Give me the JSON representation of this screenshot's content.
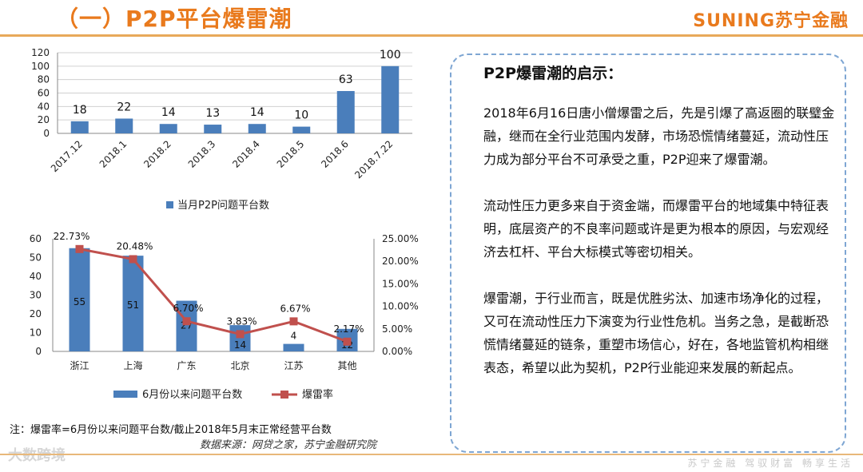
{
  "header": {
    "title": "（一）P2P平台爆雷潮",
    "brand": "SUNING苏宁金融"
  },
  "chart_data": [
    {
      "type": "bar",
      "categories": [
        "2017.12",
        "2018.1",
        "2018.2",
        "2018.3",
        "2018.4",
        "2018.5",
        "2018.6",
        "2018.7.22"
      ],
      "series": [
        {
          "name": "当月P2P问题平台数",
          "values": [
            18,
            22,
            14,
            13,
            14,
            10,
            63,
            100
          ],
          "color": "#4a7ebb"
        }
      ],
      "yticks": [
        0,
        20,
        40,
        60,
        80,
        100,
        120
      ],
      "ylim": [
        0,
        120
      ],
      "grid": true,
      "legend": "bottom"
    },
    {
      "type": "bar+line",
      "categories": [
        "浙江",
        "上海",
        "广东",
        "北京",
        "江苏",
        "其他"
      ],
      "series": [
        {
          "name": "6月份以来问题平台数",
          "type": "bar",
          "axis": "left",
          "values": [
            55,
            51,
            27,
            14,
            4,
            12
          ],
          "labels": [
            "55",
            "51",
            "27",
            "14",
            "4",
            "12"
          ],
          "color": "#4a7ebb"
        },
        {
          "name": "爆雷率",
          "type": "line",
          "axis": "right",
          "values": [
            22.73,
            20.48,
            6.7,
            3.83,
            6.67,
            2.17
          ],
          "labels": [
            "22.73%",
            "20.48%",
            "6.70%",
            "3.83%",
            "6.67%",
            "2.17%"
          ],
          "color": "#c0504d"
        }
      ],
      "yticks_left": [
        0,
        10,
        20,
        30,
        40,
        50,
        60
      ],
      "ylim_left": [
        0,
        60
      ],
      "yticks_right": [
        "0.00%",
        "5.00%",
        "10.00%",
        "15.00%",
        "20.00%",
        "25.00%"
      ],
      "ylim_right": [
        0,
        25
      ],
      "legend": "bottom"
    }
  ],
  "note": "注：爆雷率=6月份以来问题平台数/截止2018年5月末正常经营平台数",
  "source": "数据来源：网贷之家，苏宁金融研究院",
  "panel": {
    "title": "P2P爆雷潮的启示：",
    "paragraphs": [
      "2018年6月16日唐小僧爆雷之后，先是引爆了高返圈的联璧金融，继而在全行业范围内发酵，市场恐慌情绪蔓延，流动性压力成为部分平台不可承受之重，P2P迎来了爆雷潮。",
      "流动性压力更多来自于资金端，而爆雷平台的地域集中特征表明，底层资产的不良率问题或许是更为根本的原因，与宏观经济去杠杆、平台大标模式等密切相关。",
      "爆雷潮，于行业而言，既是优胜劣汰、加速市场净化的过程，又可在流动性压力下演变为行业性危机。当务之急，是截断恐慌情绪蔓延的链条，重塑市场信心，好在，各地监管机构相继表态，希望以此为契机，P2P行业能迎来发展的新起点。"
    ]
  },
  "watermark": "大数跨境",
  "slogan": "苏宁金融 驾驭财富 畅享生活"
}
